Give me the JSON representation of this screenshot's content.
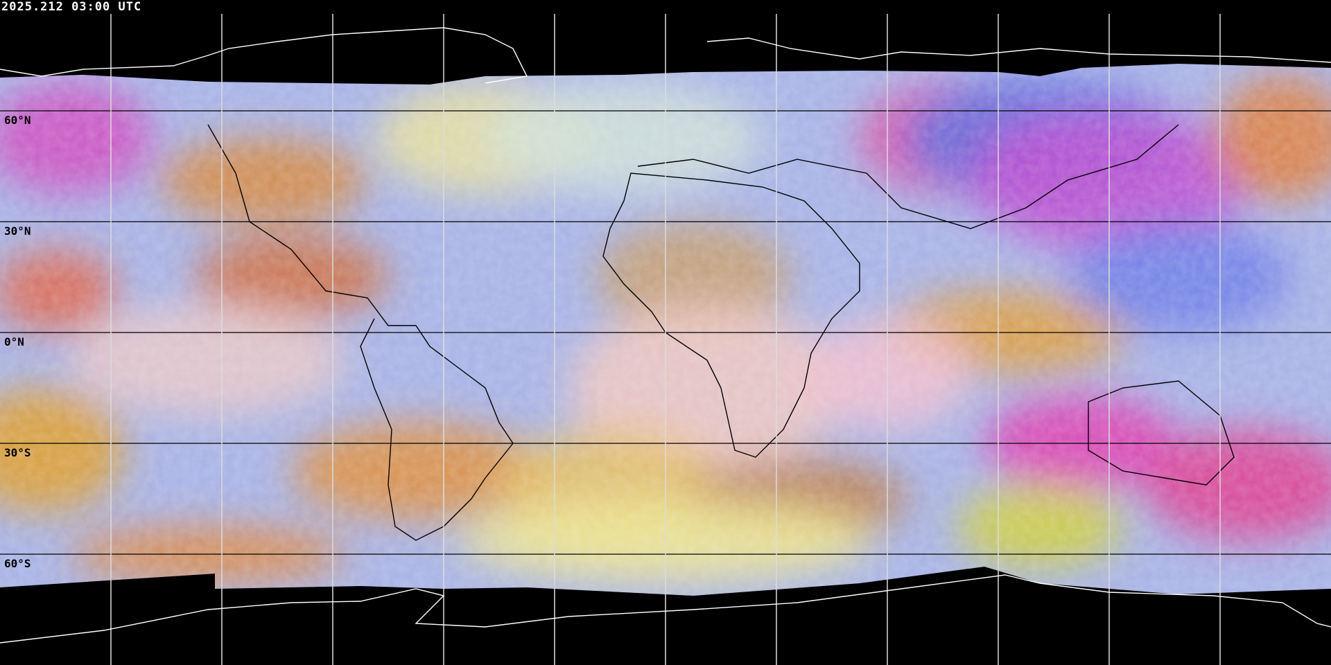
{
  "title": "2025.212 03:00 UTC",
  "projection": "equirectangular",
  "longitude_gridlines_deg": [
    -150,
    -120,
    -90,
    -60,
    -30,
    0,
    30,
    60,
    90,
    120,
    150
  ],
  "latitude_labels": [
    {
      "lat": 60,
      "text": "60°N"
    },
    {
      "lat": 30,
      "text": "30°N"
    },
    {
      "lat": 0,
      "text": "0°N"
    },
    {
      "lat": -30,
      "text": "30°S"
    },
    {
      "lat": -60,
      "text": "60°S"
    }
  ],
  "colors": {
    "background": "#000000",
    "grid_over_imagery": "#000000",
    "grid_over_space": "#ffffff",
    "coastline_space": "#ffffff",
    "coastline_imagery": "#000000"
  }
}
